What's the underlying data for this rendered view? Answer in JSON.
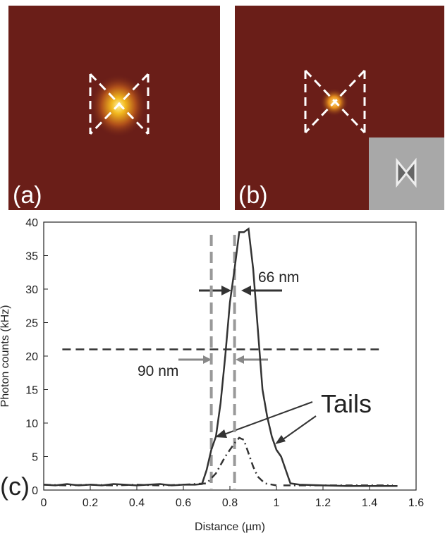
{
  "panels": [
    {
      "label": "(a)"
    },
    {
      "label": "(b)"
    }
  ],
  "chart_data": {
    "type": "line",
    "panel_label": "(c)",
    "xlabel": "Distance (µm)",
    "ylabel": "Photon counts (kHz)",
    "xlim": [
      0,
      1.6
    ],
    "ylim": [
      0,
      40
    ],
    "xticks": [
      0,
      0.2,
      0.4,
      0.6,
      0.8,
      1,
      1.2,
      1.4,
      1.6
    ],
    "yticks": [
      0,
      5,
      10,
      15,
      20,
      25,
      30,
      35,
      40
    ],
    "annotations": [
      "66 nm",
      "90 nm",
      "Tails"
    ],
    "hline": {
      "y": 21,
      "x": [
        0.08,
        1.44
      ],
      "color": "#333333"
    },
    "vlines": {
      "x": [
        0.72,
        0.82
      ],
      "color": "#999999"
    },
    "series": [
      {
        "style": "solid",
        "color": "#333333",
        "x": [
          0,
          0.05,
          0.1,
          0.15,
          0.2,
          0.25,
          0.3,
          0.35,
          0.4,
          0.45,
          0.5,
          0.55,
          0.6,
          0.65,
          0.68,
          0.7,
          0.72,
          0.74,
          0.76,
          0.78,
          0.8,
          0.82,
          0.84,
          0.86,
          0.88,
          0.9,
          0.92,
          0.94,
          0.96,
          0.98,
          1.0,
          1.02,
          1.04,
          1.06,
          1.1,
          1.2,
          1.3,
          1.4,
          1.52
        ],
        "values": [
          0.8,
          0.7,
          0.9,
          0.7,
          0.8,
          0.7,
          0.9,
          0.8,
          0.7,
          0.8,
          0.9,
          0.7,
          0.8,
          0.8,
          0.9,
          3,
          6,
          8,
          13,
          20,
          28,
          33,
          38.5,
          38.5,
          39,
          33,
          24,
          15,
          11,
          8,
          6,
          5,
          3,
          1,
          0.8,
          0.7,
          0.6,
          0.6,
          0.6
        ]
      },
      {
        "style": "dashdot",
        "color": "#333333",
        "x": [
          0,
          0.1,
          0.2,
          0.3,
          0.4,
          0.5,
          0.6,
          0.7,
          0.74,
          0.78,
          0.82,
          0.84,
          0.86,
          0.88,
          0.9,
          0.92,
          0.95,
          1.0,
          1.01,
          1.03,
          1.1,
          1.2,
          1.3,
          1.4,
          1.5
        ],
        "values": [
          0.8,
          0.7,
          0.8,
          0.7,
          0.8,
          0.7,
          0.8,
          1,
          2.5,
          5,
          7,
          7.8,
          7.5,
          5.5,
          3.5,
          2,
          1,
          0.7,
          null,
          0.7,
          0.7,
          0.7,
          0.7,
          0.7,
          0.7
        ]
      }
    ]
  }
}
